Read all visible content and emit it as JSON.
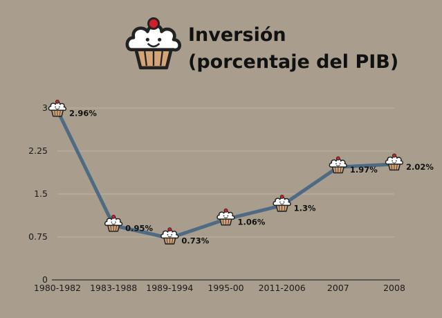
{
  "title_lines": [
    "Inversión",
    "(porcentaje del PIB)"
  ],
  "title_icon": "cupcake-icon",
  "point_icon": "cupcake-icon",
  "colors": {
    "background": "#a99e8e",
    "line": "#4e6b83",
    "grid": "#bdb3a4",
    "axis": "#2a2a2a",
    "cupcake_frosting": "#ffffff",
    "cupcake_base": "#d3a477",
    "cherry": "#d11f2a"
  },
  "chart_data": {
    "type": "line",
    "title": "Inversión (porcentaje del PIB)",
    "xlabel": "",
    "ylabel": "",
    "categories": [
      "1980-1982",
      "1983-1988",
      "1989-1994",
      "1995-00",
      "2011-2006",
      "2007",
      "2008"
    ],
    "values": [
      2.96,
      0.95,
      0.73,
      1.06,
      1.3,
      1.97,
      2.02
    ],
    "data_labels": [
      "2.96%",
      "0.95%",
      "0.73%",
      "1.06%",
      "1.3%",
      "1.97%",
      "2.02%"
    ],
    "yticks": [
      0,
      0.75,
      1.5,
      2.25,
      3
    ],
    "ytick_labels": [
      "0",
      "0.75",
      "1.5",
      "2.25",
      "3"
    ],
    "ylim": [
      0,
      3
    ],
    "grid": true,
    "legend": "none"
  }
}
